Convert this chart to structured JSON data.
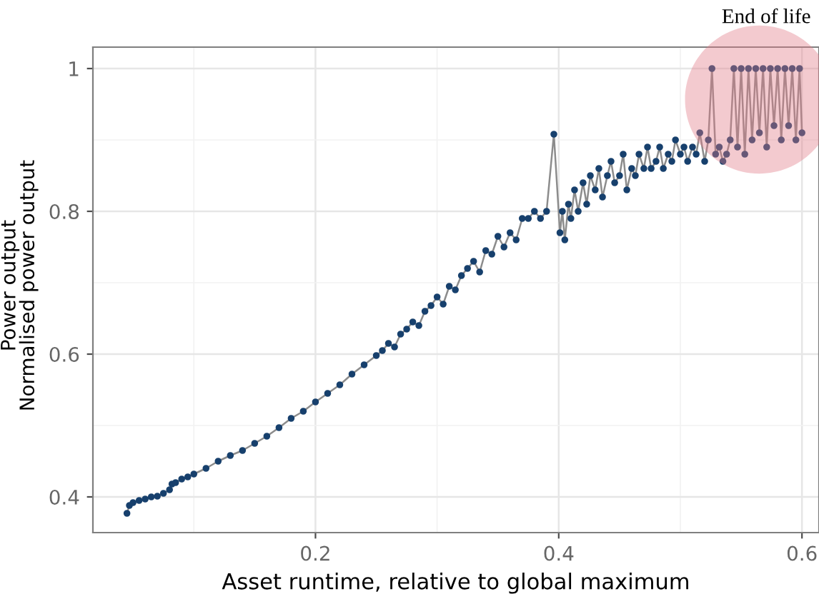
{
  "chart_data": {
    "type": "line",
    "xlabel": "Asset runtime, relative to global maximum",
    "ylabel": "Normalised power output",
    "annotations": [
      "Power output",
      "End of life"
    ],
    "x": [
      0.045,
      0.047,
      0.05,
      0.055,
      0.06,
      0.065,
      0.07,
      0.075,
      0.08,
      0.082,
      0.085,
      0.09,
      0.095,
      0.1,
      0.11,
      0.12,
      0.13,
      0.14,
      0.15,
      0.16,
      0.17,
      0.18,
      0.19,
      0.2,
      0.21,
      0.22,
      0.23,
      0.24,
      0.25,
      0.255,
      0.26,
      0.265,
      0.27,
      0.275,
      0.28,
      0.285,
      0.29,
      0.295,
      0.3,
      0.305,
      0.31,
      0.315,
      0.32,
      0.325,
      0.33,
      0.335,
      0.34,
      0.345,
      0.35,
      0.355,
      0.36,
      0.365,
      0.37,
      0.375,
      0.38,
      0.385,
      0.39,
      0.396,
      0.401,
      0.403,
      0.405,
      0.408,
      0.41,
      0.413,
      0.416,
      0.42,
      0.423,
      0.426,
      0.43,
      0.433,
      0.436,
      0.44,
      0.443,
      0.446,
      0.45,
      0.453,
      0.456,
      0.46,
      0.463,
      0.466,
      0.47,
      0.473,
      0.476,
      0.48,
      0.483,
      0.486,
      0.49,
      0.493,
      0.496,
      0.5,
      0.503,
      0.506,
      0.51,
      0.513,
      0.516,
      0.52,
      0.523,
      0.526,
      0.529,
      0.532,
      0.535,
      0.538,
      0.541,
      0.544,
      0.547,
      0.55,
      0.553,
      0.556,
      0.559,
      0.562,
      0.565,
      0.568,
      0.571,
      0.574,
      0.577,
      0.58,
      0.583,
      0.586,
      0.589,
      0.592,
      0.595,
      0.598,
      0.6
    ],
    "series": [
      {
        "color": "#8c8c8c",
        "marker": "none",
        "values": [
          0.377,
          0.388,
          0.392,
          0.395,
          0.397,
          0.4,
          0.401,
          0.405,
          0.41,
          0.418,
          0.42,
          0.425,
          0.428,
          0.432,
          0.44,
          0.45,
          0.458,
          0.465,
          0.475,
          0.485,
          0.497,
          0.51,
          0.52,
          0.533,
          0.545,
          0.557,
          0.572,
          0.585,
          0.598,
          0.605,
          0.615,
          0.61,
          0.628,
          0.635,
          0.645,
          0.64,
          0.66,
          0.668,
          0.68,
          0.67,
          0.695,
          0.69,
          0.71,
          0.72,
          0.73,
          0.715,
          0.745,
          0.74,
          0.765,
          0.75,
          0.77,
          0.76,
          0.79,
          0.79,
          0.8,
          0.79,
          0.8,
          0.908,
          0.77,
          0.8,
          0.76,
          0.81,
          0.79,
          0.83,
          0.8,
          0.84,
          0.81,
          0.85,
          0.83,
          0.86,
          0.82,
          0.85,
          0.87,
          0.84,
          0.85,
          0.88,
          0.83,
          0.86,
          0.85,
          0.88,
          0.86,
          0.89,
          0.86,
          0.87,
          0.89,
          0.86,
          0.88,
          0.87,
          0.9,
          0.88,
          0.89,
          0.87,
          0.89,
          0.88,
          0.91,
          0.87,
          0.9,
          1.0,
          0.88,
          0.89,
          0.87,
          0.88,
          0.9,
          1.0,
          0.89,
          1.0,
          0.88,
          1.0,
          0.9,
          1.0,
          0.91,
          1.0,
          0.89,
          1.0,
          0.92,
          1.0,
          0.9,
          1.0,
          0.92,
          1.0,
          0.9,
          1.0,
          0.91
        ]
      },
      {
        "type": "scatter",
        "color": "#17406d",
        "marker": "circle",
        "values": [
          0.377,
          0.388,
          0.392,
          0.395,
          0.397,
          0.4,
          0.401,
          0.405,
          0.41,
          0.418,
          0.42,
          0.425,
          0.428,
          0.432,
          0.44,
          0.45,
          0.458,
          0.465,
          0.475,
          0.485,
          0.497,
          0.51,
          0.52,
          0.533,
          0.545,
          0.557,
          0.572,
          0.585,
          0.598,
          0.605,
          0.615,
          0.61,
          0.628,
          0.635,
          0.645,
          0.64,
          0.66,
          0.668,
          0.68,
          0.67,
          0.695,
          0.69,
          0.71,
          0.72,
          0.73,
          0.715,
          0.745,
          0.74,
          0.765,
          0.75,
          0.77,
          0.76,
          0.79,
          0.79,
          0.8,
          0.79,
          0.8,
          0.908,
          0.77,
          0.8,
          0.76,
          0.81,
          0.79,
          0.83,
          0.8,
          0.84,
          0.81,
          0.85,
          0.83,
          0.86,
          0.82,
          0.85,
          0.87,
          0.84,
          0.85,
          0.88,
          0.83,
          0.86,
          0.85,
          0.88,
          0.86,
          0.89,
          0.86,
          0.87,
          0.89,
          0.86,
          0.88,
          0.87,
          0.9,
          0.88,
          0.89,
          0.87,
          0.89,
          0.88,
          0.91,
          0.87,
          0.9,
          1.0,
          0.88,
          0.89,
          0.87,
          0.88,
          0.9,
          1.0,
          0.89,
          1.0,
          0.88,
          1.0,
          0.9,
          1.0,
          0.91,
          1.0,
          0.89,
          1.0,
          0.92,
          1.0,
          0.9,
          1.0,
          0.92,
          1.0,
          0.9,
          1.0,
          0.91
        ]
      }
    ],
    "xlim": [
      0.017,
      0.614
    ],
    "ylim": [
      0.35,
      1.03
    ],
    "xticks": [
      {
        "value": 0.1,
        "label": null
      },
      0.2,
      {
        "value": 0.3,
        "label": null
      },
      0.4,
      {
        "value": 0.5,
        "label": null
      },
      0.6
    ],
    "yticks": [
      0.4,
      {
        "value": 0.5,
        "label": null
      },
      0.6,
      {
        "value": 0.7,
        "label": null
      },
      0.8,
      {
        "value": 0.9,
        "label": null
      },
      {
        "value": 1,
        "label": "1"
      }
    ],
    "grid": true,
    "legend": false
  }
}
